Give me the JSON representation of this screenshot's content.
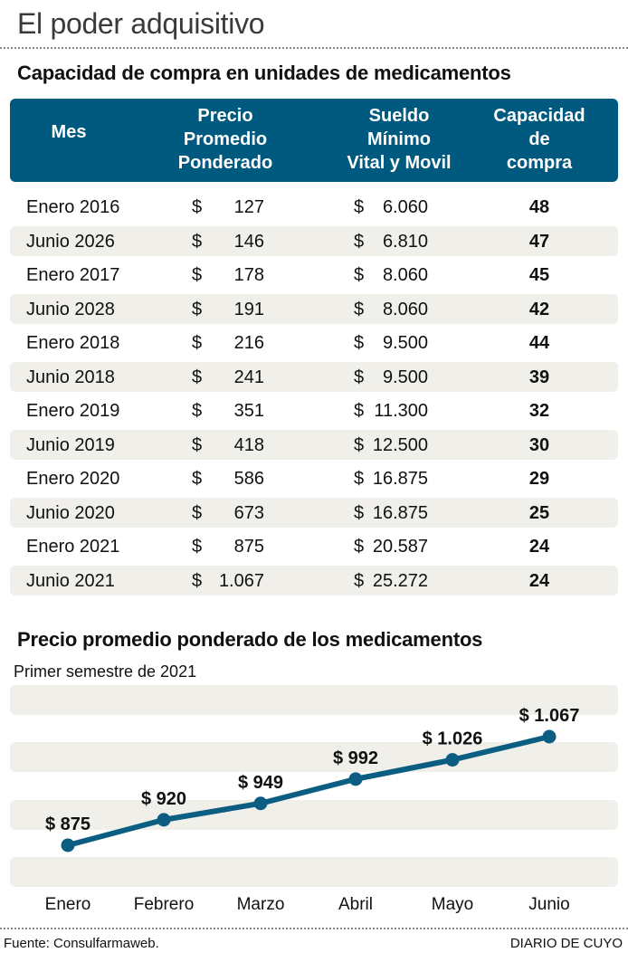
{
  "title": "El poder adquisitivo",
  "table_title": "Capacidad de compra en unidades de medicamentos",
  "table": {
    "headers": [
      {
        "lines": [
          "Mes"
        ]
      },
      {
        "lines": [
          "Precio",
          "Promedio",
          "Ponderado"
        ]
      },
      {
        "lines": [
          "Sueldo",
          "Mínimo",
          "Vital y Movil"
        ]
      },
      {
        "lines": [
          "Capacidad",
          "de",
          "compra"
        ]
      }
    ],
    "currency": "$",
    "rows": [
      {
        "mes": "Enero 2016",
        "precio": "127",
        "sueldo": "6.060",
        "capacidad": "48"
      },
      {
        "mes": "Junio 2026",
        "precio": "146",
        "sueldo": "6.810",
        "capacidad": "47"
      },
      {
        "mes": "Enero 2017",
        "precio": "178",
        "sueldo": "8.060",
        "capacidad": "45"
      },
      {
        "mes": "Junio 2028",
        "precio": "191",
        "sueldo": "8.060",
        "capacidad": "42"
      },
      {
        "mes": "Enero 2018",
        "precio": "216",
        "sueldo": "9.500",
        "capacidad": "44"
      },
      {
        "mes": "Junio 2018",
        "precio": "241",
        "sueldo": "9.500",
        "capacidad": "39"
      },
      {
        "mes": "Enero 2019",
        "precio": "351",
        "sueldo": "11.300",
        "capacidad": "32"
      },
      {
        "mes": "Junio 2019",
        "precio": "418",
        "sueldo": "12.500",
        "capacidad": "30"
      },
      {
        "mes": "Enero 2020",
        "precio": "586",
        "sueldo": "16.875",
        "capacidad": "29"
      },
      {
        "mes": "Junio 2020",
        "precio": "673",
        "sueldo": "16.875",
        "capacidad": "25"
      },
      {
        "mes": "Enero 2021",
        "precio": "875",
        "sueldo": "20.587",
        "capacidad": "24"
      },
      {
        "mes": "Junio 2021",
        "precio": "1.067",
        "sueldo": "25.272",
        "capacidad": "24"
      }
    ]
  },
  "chart_data": {
    "type": "line",
    "title": "Precio promedio ponderado de los medicamentos",
    "subtitle": "Primer semestre de 2021",
    "categories": [
      "Enero",
      "Febrero",
      "Marzo",
      "Abril",
      "Mayo",
      "Junio"
    ],
    "series": [
      {
        "name": "Precio promedio ponderado",
        "values": [
          875,
          920,
          949,
          992,
          1026,
          1067
        ]
      }
    ],
    "data_labels": [
      "$ 875",
      "$ 920",
      "$ 949",
      "$ 992",
      "$ 1.026",
      "$ 1.067"
    ],
    "xlabel": "",
    "ylabel": "",
    "ylim": [
      800,
      1110
    ],
    "grid": "horizontal bands",
    "line_color": "#0b5d82"
  },
  "colors": {
    "header_bg": "#005a80",
    "stripe": "#f0efea",
    "line": "#0b5d82"
  },
  "footer": {
    "source": "Fuente: Consulfarmaweb.",
    "brand": "DIARIO DE CUYO"
  }
}
